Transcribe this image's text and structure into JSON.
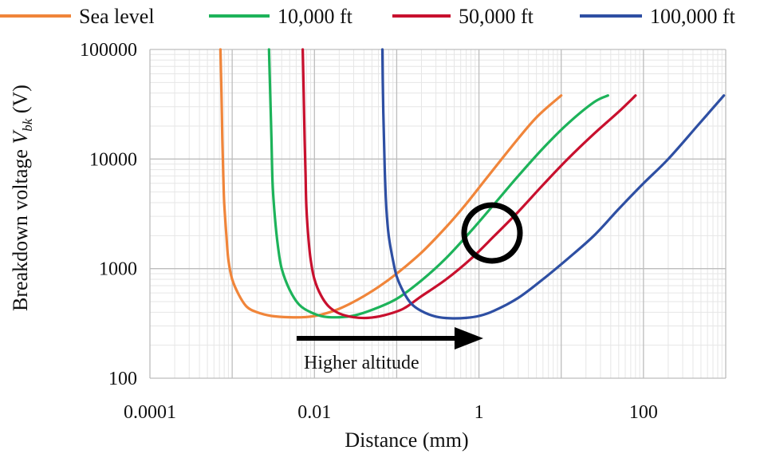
{
  "chart_data": {
    "type": "line",
    "xlabel": "Distance (mm)",
    "ylabel": {
      "main": "Breakdown voltage ",
      "symbol": "V",
      "sub": "bk",
      "unit": " (V)"
    },
    "xscale": "log",
    "yscale": "log",
    "xlim": [
      0.0001,
      1000
    ],
    "ylim": [
      100,
      100000
    ],
    "xticks": [
      0.0001,
      0.01,
      1,
      100
    ],
    "xtick_labels": [
      "0.0001",
      "0.01",
      "1",
      "100"
    ],
    "yticks": [
      100,
      1000,
      10000,
      100000
    ],
    "ytick_labels": [
      "100",
      "1000",
      "10000",
      "100000"
    ],
    "grid": true,
    "legend": "top",
    "series": [
      {
        "name": "Sea level",
        "color": "#F0853A",
        "x": [
          0.00072,
          0.00074,
          0.00076,
          0.00078,
          0.0008,
          0.00085,
          0.0009,
          0.001,
          0.0012,
          0.0015,
          0.002,
          0.003,
          0.005,
          0.008,
          0.012,
          0.02,
          0.035,
          0.06,
          0.1,
          0.2,
          0.4,
          0.7,
          1.2,
          2.5,
          5,
          10
        ],
        "y": [
          100000,
          40000,
          15000,
          7000,
          4000,
          2000,
          1200,
          800,
          580,
          450,
          400,
          370,
          360,
          362,
          380,
          430,
          530,
          680,
          900,
          1400,
          2400,
          3900,
          6500,
          13000,
          24000,
          38000
        ]
      },
      {
        "name": "10,000 ft",
        "color": "#1DB35A",
        "x": [
          0.0028,
          0.0029,
          0.003,
          0.0031,
          0.0033,
          0.0036,
          0.004,
          0.005,
          0.0065,
          0.009,
          0.013,
          0.02,
          0.03,
          0.05,
          0.1,
          0.2,
          0.4,
          0.8,
          1.5,
          3,
          6,
          12,
          25,
          37
        ],
        "y": [
          100000,
          40000,
          15000,
          6000,
          3000,
          1600,
          1000,
          640,
          470,
          400,
          365,
          360,
          372,
          420,
          530,
          780,
          1250,
          2200,
          3800,
          7000,
          12500,
          21000,
          33000,
          38000
        ]
      },
      {
        "name": "50,000 ft",
        "color": "#C8102E",
        "x": [
          0.0072,
          0.0074,
          0.0076,
          0.0078,
          0.008,
          0.0085,
          0.009,
          0.01,
          0.012,
          0.015,
          0.02,
          0.03,
          0.045,
          0.07,
          0.12,
          0.2,
          0.4,
          0.8,
          1.5,
          3,
          6,
          12,
          25,
          50,
          80
        ],
        "y": [
          100000,
          40000,
          15000,
          7000,
          3500,
          1800,
          1200,
          800,
          570,
          450,
          390,
          360,
          355,
          375,
          430,
          560,
          800,
          1230,
          1950,
          3300,
          5800,
          10000,
          17000,
          27000,
          38000
        ]
      },
      {
        "name": "100,000 ft",
        "color": "#2E4FA3",
        "x": [
          0.067,
          0.068,
          0.07,
          0.072,
          0.075,
          0.08,
          0.09,
          0.1,
          0.12,
          0.15,
          0.2,
          0.3,
          0.45,
          0.7,
          1,
          1.5,
          3,
          6,
          12,
          25,
          50,
          100,
          200,
          450,
          950
        ],
        "y": [
          100000,
          40000,
          15000,
          7000,
          3500,
          2000,
          1200,
          850,
          620,
          480,
          410,
          365,
          352,
          355,
          370,
          410,
          540,
          800,
          1230,
          2000,
          3500,
          6000,
          10000,
          20000,
          38000
        ]
      }
    ],
    "annotations": [
      {
        "type": "arrow",
        "text": "Higher altitude",
        "direction": "right"
      },
      {
        "type": "circle",
        "note": "crossing of 10,000 ft and 50,000 ft curves"
      }
    ]
  }
}
